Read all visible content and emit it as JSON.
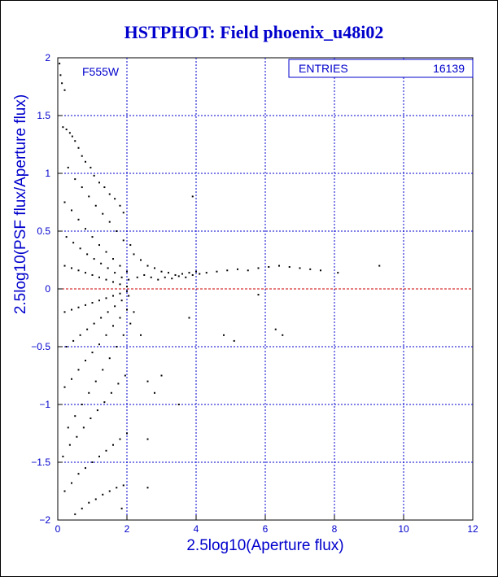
{
  "chart_data": {
    "type": "scatter",
    "title": "HSTPHOT: Field phoenix_u48i02",
    "xlabel": "2.5log10(Aperture flux)",
    "ylabel": "2.5log10(PSF flux/Aperture flux)",
    "xlim": [
      0,
      12
    ],
    "ylim": [
      -2,
      2
    ],
    "x_ticks": [
      0,
      2,
      4,
      6,
      8,
      10,
      12
    ],
    "x_tick_labels": [
      "0",
      "2",
      "4",
      "6",
      "8",
      "10",
      "12"
    ],
    "y_ticks": [
      -2,
      -1.5,
      -1,
      -0.5,
      0,
      0.5,
      1,
      1.5,
      2
    ],
    "y_tick_labels": [
      "−2",
      "−1.5",
      "−1",
      "−0.5",
      "0",
      "0.5",
      "1",
      "1.5",
      "2"
    ],
    "grid": true,
    "filter_label": "F555W",
    "stats_box": {
      "label": "ENTRIES",
      "value": "16139"
    },
    "reference_line": {
      "y": 0,
      "color": "#cc0000",
      "style": "dashed"
    },
    "series": [
      {
        "color": "#000000",
        "points": [
          [
            0.05,
            1.95
          ],
          [
            0.08,
            1.85
          ],
          [
            0.12,
            1.78
          ],
          [
            0.2,
            1.72
          ],
          [
            0.15,
            1.4
          ],
          [
            0.25,
            1.38
          ],
          [
            0.35,
            1.35
          ],
          [
            0.42,
            1.32
          ],
          [
            0.5,
            1.28
          ],
          [
            0.6,
            1.22
          ],
          [
            0.7,
            1.15
          ],
          [
            0.8,
            1.1
          ],
          [
            0.95,
            1.05
          ],
          [
            1.05,
            0.98
          ],
          [
            1.2,
            0.92
          ],
          [
            1.35,
            0.88
          ],
          [
            1.5,
            0.82
          ],
          [
            1.65,
            0.78
          ],
          [
            1.8,
            0.72
          ],
          [
            1.9,
            0.66
          ],
          [
            0.3,
            1.05
          ],
          [
            0.5,
            0.95
          ],
          [
            0.7,
            0.88
          ],
          [
            0.9,
            0.8
          ],
          [
            1.1,
            0.72
          ],
          [
            1.3,
            0.65
          ],
          [
            1.5,
            0.58
          ],
          [
            1.7,
            0.5
          ],
          [
            1.9,
            0.42
          ],
          [
            2.1,
            0.38
          ],
          [
            0.2,
            0.75
          ],
          [
            0.4,
            0.68
          ],
          [
            0.6,
            0.6
          ],
          [
            0.8,
            0.52
          ],
          [
            1.0,
            0.45
          ],
          [
            1.2,
            0.38
          ],
          [
            1.4,
            0.32
          ],
          [
            1.6,
            0.26
          ],
          [
            1.8,
            0.2
          ],
          [
            2.0,
            0.15
          ],
          [
            0.25,
            0.45
          ],
          [
            0.45,
            0.4
          ],
          [
            0.65,
            0.35
          ],
          [
            0.85,
            0.3
          ],
          [
            1.05,
            0.26
          ],
          [
            1.25,
            0.22
          ],
          [
            1.45,
            0.18
          ],
          [
            1.65,
            0.14
          ],
          [
            1.85,
            0.1
          ],
          [
            2.05,
            0.08
          ],
          [
            0.2,
            0.2
          ],
          [
            0.4,
            0.18
          ],
          [
            0.6,
            0.16
          ],
          [
            0.8,
            0.14
          ],
          [
            1.0,
            0.12
          ],
          [
            1.2,
            0.1
          ],
          [
            1.4,
            0.08
          ],
          [
            1.6,
            0.06
          ],
          [
            1.8,
            0.04
          ],
          [
            2.0,
            0.02
          ],
          [
            0.2,
            -0.2
          ],
          [
            0.4,
            -0.18
          ],
          [
            0.6,
            -0.16
          ],
          [
            0.8,
            -0.14
          ],
          [
            1.0,
            -0.12
          ],
          [
            1.2,
            -0.1
          ],
          [
            1.4,
            -0.08
          ],
          [
            1.6,
            -0.06
          ],
          [
            1.8,
            -0.04
          ],
          [
            2.0,
            -0.02
          ],
          [
            0.25,
            -0.5
          ],
          [
            0.45,
            -0.45
          ],
          [
            0.65,
            -0.4
          ],
          [
            0.85,
            -0.35
          ],
          [
            1.05,
            -0.3
          ],
          [
            1.25,
            -0.25
          ],
          [
            1.45,
            -0.2
          ],
          [
            1.65,
            -0.15
          ],
          [
            1.85,
            -0.1
          ],
          [
            2.05,
            -0.06
          ],
          [
            0.2,
            -0.85
          ],
          [
            0.4,
            -0.78
          ],
          [
            0.6,
            -0.7
          ],
          [
            0.8,
            -0.62
          ],
          [
            1.0,
            -0.55
          ],
          [
            1.2,
            -0.48
          ],
          [
            1.4,
            -0.4
          ],
          [
            1.6,
            -0.32
          ],
          [
            1.8,
            -0.25
          ],
          [
            2.0,
            -0.18
          ],
          [
            0.3,
            -1.2
          ],
          [
            0.5,
            -1.1
          ],
          [
            0.7,
            -1.0
          ],
          [
            0.9,
            -0.9
          ],
          [
            1.1,
            -0.8
          ],
          [
            1.3,
            -0.7
          ],
          [
            1.5,
            -0.6
          ],
          [
            1.7,
            -0.5
          ],
          [
            1.9,
            -0.4
          ],
          [
            2.1,
            -0.3
          ],
          [
            0.15,
            -1.45
          ],
          [
            0.35,
            -1.35
          ],
          [
            0.55,
            -1.28
          ],
          [
            0.75,
            -1.2
          ],
          [
            0.95,
            -1.12
          ],
          [
            1.15,
            -1.05
          ],
          [
            1.35,
            -0.98
          ],
          [
            1.55,
            -0.9
          ],
          [
            1.75,
            -0.82
          ],
          [
            1.95,
            -0.75
          ],
          [
            0.2,
            -1.75
          ],
          [
            0.4,
            -1.68
          ],
          [
            0.6,
            -1.6
          ],
          [
            0.8,
            -1.55
          ],
          [
            1.0,
            -1.5
          ],
          [
            1.2,
            -1.45
          ],
          [
            1.4,
            -1.4
          ],
          [
            1.6,
            -1.35
          ],
          [
            1.8,
            -1.3
          ],
          [
            2.0,
            -1.25
          ],
          [
            0.5,
            -1.95
          ],
          [
            0.7,
            -1.9
          ],
          [
            0.9,
            -1.85
          ],
          [
            1.1,
            -1.82
          ],
          [
            1.3,
            -1.78
          ],
          [
            1.5,
            -1.75
          ],
          [
            1.7,
            -1.72
          ],
          [
            1.9,
            -1.7
          ],
          [
            2.2,
            0.3
          ],
          [
            2.4,
            0.25
          ],
          [
            2.6,
            0.2
          ],
          [
            2.8,
            0.18
          ],
          [
            3.0,
            0.15
          ],
          [
            3.2,
            0.14
          ],
          [
            3.4,
            0.12
          ],
          [
            3.6,
            0.13
          ],
          [
            3.8,
            0.14
          ],
          [
            4.0,
            0.15
          ],
          [
            2.3,
            0.1
          ],
          [
            2.5,
            0.12
          ],
          [
            2.7,
            0.1
          ],
          [
            2.9,
            0.08
          ],
          [
            3.1,
            0.1
          ],
          [
            3.3,
            0.09
          ],
          [
            3.5,
            0.11
          ],
          [
            3.7,
            0.1
          ],
          [
            3.9,
            0.12
          ],
          [
            4.1,
            0.13
          ],
          [
            4.3,
            0.14
          ],
          [
            4.6,
            0.15
          ],
          [
            4.9,
            0.16
          ],
          [
            5.2,
            0.17
          ],
          [
            5.5,
            0.16
          ],
          [
            5.8,
            0.18
          ],
          [
            6.1,
            0.19
          ],
          [
            6.4,
            0.2
          ],
          [
            6.7,
            0.19
          ],
          [
            7.0,
            0.18
          ],
          [
            7.3,
            0.17
          ],
          [
            7.6,
            0.16
          ],
          [
            8.1,
            0.14
          ],
          [
            9.3,
            0.2
          ],
          [
            5.8,
            -0.05
          ],
          [
            6.3,
            -0.35
          ],
          [
            6.5,
            -0.4
          ],
          [
            4.8,
            -0.4
          ],
          [
            5.1,
            -0.45
          ],
          [
            3.8,
            -0.25
          ],
          [
            2.2,
            -0.2
          ],
          [
            2.4,
            -0.4
          ],
          [
            2.6,
            -0.8
          ],
          [
            2.8,
            -0.9
          ],
          [
            3.0,
            -0.75
          ],
          [
            3.5,
            -1.0
          ],
          [
            2.6,
            -1.3
          ],
          [
            3.9,
            0.8
          ],
          [
            2.6,
            -1.72
          ],
          [
            1.85,
            -1.9
          ]
        ]
      }
    ]
  }
}
